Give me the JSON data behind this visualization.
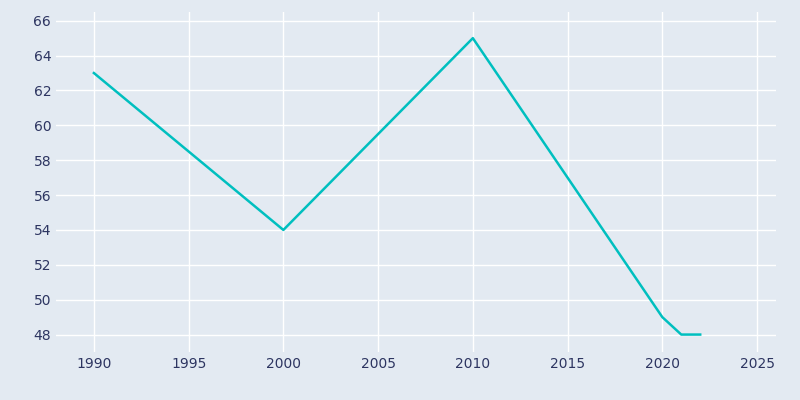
{
  "years": [
    1990,
    2000,
    2010,
    2020,
    2021,
    2022
  ],
  "population": [
    63,
    54,
    65,
    49,
    48,
    48
  ],
  "line_color": "#00BFBF",
  "bg_color": "#E3EAF2",
  "plot_bg_color": "#E3EAF2",
  "grid_color": "#ffffff",
  "xlabel": "",
  "ylabel": "",
  "xlim": [
    1988,
    2026
  ],
  "ylim": [
    47,
    66.5
  ],
  "yticks": [
    48,
    50,
    52,
    54,
    56,
    58,
    60,
    62,
    64,
    66
  ],
  "xticks": [
    1990,
    1995,
    2000,
    2005,
    2010,
    2015,
    2020,
    2025
  ],
  "line_width": 1.8,
  "figsize": [
    8.0,
    4.0
  ],
  "dpi": 100
}
